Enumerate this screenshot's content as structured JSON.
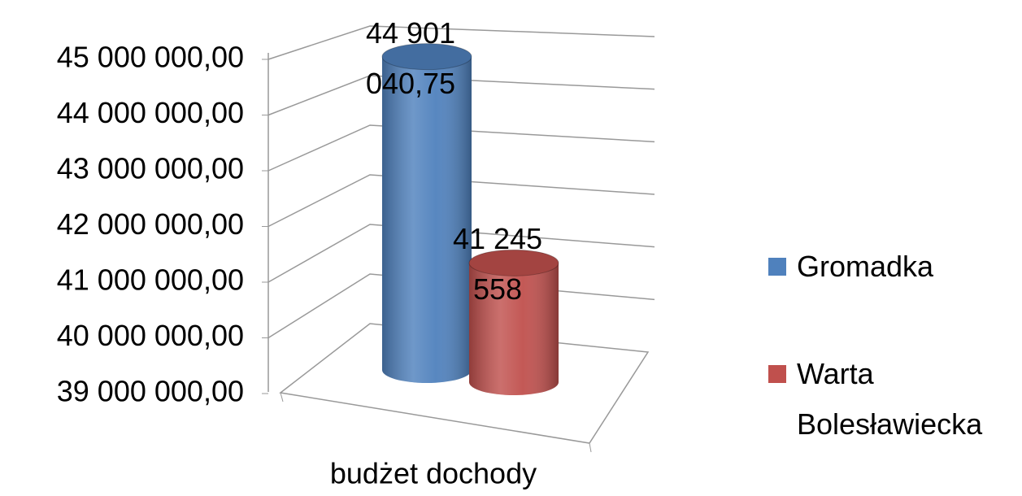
{
  "chart_data": {
    "type": "bar3d",
    "categories": [
      "budżet dochody"
    ],
    "series": [
      {
        "name": "Gromadka",
        "color": "#4f81bd",
        "values": [
          44901040.75
        ],
        "value_labels": [
          "44 901 040,75"
        ]
      },
      {
        "name": "Warta Bolesławiecka",
        "color": "#c0504d",
        "values": [
          41245558
        ],
        "value_labels": [
          "41 245 558"
        ]
      }
    ],
    "ylim": [
      39000000,
      45000000
    ],
    "yticks": [
      {
        "value": 39000000,
        "label": "39 000 000,00"
      },
      {
        "value": 40000000,
        "label": "40 000 000,00"
      },
      {
        "value": 41000000,
        "label": "41 000 000,00"
      },
      {
        "value": 42000000,
        "label": "42 000 000,00"
      },
      {
        "value": 43000000,
        "label": "43 000 000,00"
      },
      {
        "value": 44000000,
        "label": "44 000 000,00"
      },
      {
        "value": 45000000,
        "label": "45 000 000,00"
      }
    ],
    "grid": true,
    "legend": "right"
  }
}
